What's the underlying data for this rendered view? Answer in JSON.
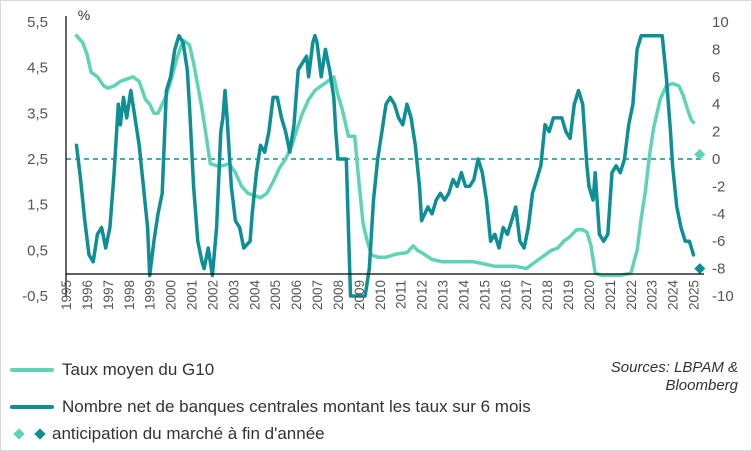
{
  "chart_data": {
    "type": "line",
    "unit_label": "%",
    "y_left": {
      "range": [
        -0.5,
        5.5
      ],
      "ticks": [
        "5,5",
        "4,5",
        "3,5",
        "2,5",
        "1,5",
        "0,5",
        "-0,5"
      ],
      "tick_values": [
        5.5,
        4.5,
        3.5,
        2.5,
        1.5,
        0.5,
        -0.5
      ]
    },
    "y_right": {
      "range": [
        -10,
        10
      ],
      "ticks": [
        "10",
        "8",
        "6",
        "4",
        "2",
        "0",
        "-2",
        "-4",
        "-6",
        "-8",
        "-10"
      ],
      "tick_values": [
        10,
        8,
        6,
        4,
        2,
        0,
        -2,
        -4,
        -6,
        -8,
        -10
      ]
    },
    "x_range": [
      1995,
      2025.5
    ],
    "x_ticks": [
      "1995",
      "1996",
      "1997",
      "1998",
      "1999",
      "2000",
      "2001",
      "2002",
      "2003",
      "2004",
      "2005",
      "2006",
      "2007",
      "2008",
      "2009",
      "2010",
      "2011",
      "2012",
      "2013",
      "2014",
      "2015",
      "2016",
      "2017",
      "2018",
      "2019",
      "2020",
      "2021",
      "2022",
      "2023",
      "2024",
      "2025"
    ],
    "reference_line": {
      "axis": "right",
      "value": 0,
      "style": "dashed"
    },
    "series": [
      {
        "name": "Taux moyen du G10",
        "axis": "left",
        "color": "#5fd3b5",
        "points": [
          [
            1995.5,
            5.2
          ],
          [
            1995.8,
            5.05
          ],
          [
            1996.0,
            4.8
          ],
          [
            1996.2,
            4.4
          ],
          [
            1996.5,
            4.3
          ],
          [
            1996.8,
            4.1
          ],
          [
            1997.0,
            4.05
          ],
          [
            1997.3,
            4.1
          ],
          [
            1997.6,
            4.2
          ],
          [
            1997.9,
            4.25
          ],
          [
            1998.2,
            4.3
          ],
          [
            1998.5,
            4.2
          ],
          [
            1998.8,
            3.8
          ],
          [
            1999.0,
            3.7
          ],
          [
            1999.2,
            3.5
          ],
          [
            1999.4,
            3.5
          ],
          [
            1999.6,
            3.7
          ],
          [
            1999.8,
            3.9
          ],
          [
            2000.0,
            4.2
          ],
          [
            2000.3,
            4.7
          ],
          [
            2000.6,
            5.1
          ],
          [
            2000.9,
            5.0
          ],
          [
            2001.1,
            4.6
          ],
          [
            2001.3,
            4.1
          ],
          [
            2001.5,
            3.6
          ],
          [
            2001.7,
            3.0
          ],
          [
            2001.9,
            2.4
          ],
          [
            2002.2,
            2.35
          ],
          [
            2002.5,
            2.35
          ],
          [
            2002.8,
            2.4
          ],
          [
            2003.1,
            2.2
          ],
          [
            2003.4,
            1.9
          ],
          [
            2003.7,
            1.75
          ],
          [
            2004.0,
            1.7
          ],
          [
            2004.3,
            1.65
          ],
          [
            2004.6,
            1.75
          ],
          [
            2004.9,
            2.0
          ],
          [
            2005.2,
            2.3
          ],
          [
            2005.5,
            2.5
          ],
          [
            2005.8,
            2.8
          ],
          [
            2006.0,
            3.1
          ],
          [
            2006.3,
            3.5
          ],
          [
            2006.6,
            3.8
          ],
          [
            2006.9,
            4.0
          ],
          [
            2007.2,
            4.1
          ],
          [
            2007.5,
            4.2
          ],
          [
            2007.8,
            4.3
          ],
          [
            2008.0,
            3.9
          ],
          [
            2008.2,
            3.6
          ],
          [
            2008.5,
            3.0
          ],
          [
            2008.8,
            3.0
          ],
          [
            2009.0,
            2.0
          ],
          [
            2009.2,
            1.1
          ],
          [
            2009.4,
            0.7
          ],
          [
            2009.6,
            0.4
          ],
          [
            2009.9,
            0.35
          ],
          [
            2010.3,
            0.35
          ],
          [
            2010.8,
            0.42
          ],
          [
            2011.3,
            0.45
          ],
          [
            2011.6,
            0.6
          ],
          [
            2011.8,
            0.5
          ],
          [
            2012.0,
            0.45
          ],
          [
            2012.5,
            0.3
          ],
          [
            2013.0,
            0.25
          ],
          [
            2013.5,
            0.25
          ],
          [
            2014.0,
            0.25
          ],
          [
            2014.5,
            0.25
          ],
          [
            2015.0,
            0.2
          ],
          [
            2015.5,
            0.15
          ],
          [
            2016.0,
            0.15
          ],
          [
            2016.5,
            0.15
          ],
          [
            2017.0,
            0.1
          ],
          [
            2017.3,
            0.2
          ],
          [
            2017.6,
            0.3
          ],
          [
            2017.9,
            0.4
          ],
          [
            2018.2,
            0.5
          ],
          [
            2018.5,
            0.55
          ],
          [
            2018.8,
            0.7
          ],
          [
            2019.1,
            0.8
          ],
          [
            2019.4,
            0.95
          ],
          [
            2019.7,
            0.95
          ],
          [
            2019.9,
            0.9
          ],
          [
            2020.1,
            0.6
          ],
          [
            2020.3,
            0.0
          ],
          [
            2020.6,
            -0.05
          ],
          [
            2021.0,
            -0.05
          ],
          [
            2021.5,
            -0.05
          ],
          [
            2022.0,
            0.0
          ],
          [
            2022.3,
            0.5
          ],
          [
            2022.5,
            1.2
          ],
          [
            2022.7,
            1.8
          ],
          [
            2022.9,
            2.6
          ],
          [
            2023.1,
            3.2
          ],
          [
            2023.4,
            3.8
          ],
          [
            2023.7,
            4.1
          ],
          [
            2024.0,
            4.15
          ],
          [
            2024.3,
            4.1
          ],
          [
            2024.5,
            3.9
          ],
          [
            2024.7,
            3.6
          ],
          [
            2024.9,
            3.35
          ],
          [
            2025.0,
            3.3
          ]
        ]
      },
      {
        "name": "Nombre net de banques centrales montant les taux sur 6 mois",
        "axis": "right",
        "color": "#0e8f95",
        "points": [
          [
            1995.5,
            1.0
          ],
          [
            1995.7,
            -1.5
          ],
          [
            1995.9,
            -4.5
          ],
          [
            1996.1,
            -7.0
          ],
          [
            1996.3,
            -7.5
          ],
          [
            1996.5,
            -5.5
          ],
          [
            1996.7,
            -5.0
          ],
          [
            1996.9,
            -6.5
          ],
          [
            1997.1,
            -5.0
          ],
          [
            1997.3,
            -1.0
          ],
          [
            1997.5,
            4.0
          ],
          [
            1997.6,
            2.5
          ],
          [
            1997.75,
            4.5
          ],
          [
            1997.9,
            3.0
          ],
          [
            1998.1,
            5.0
          ],
          [
            1998.3,
            3.0
          ],
          [
            1998.5,
            1.0
          ],
          [
            1998.7,
            -2.0
          ],
          [
            1998.9,
            -5.0
          ],
          [
            1999.0,
            -8.5
          ],
          [
            1999.2,
            -6.0
          ],
          [
            1999.4,
            -4.0
          ],
          [
            1999.6,
            -2.5
          ],
          [
            1999.8,
            5.0
          ],
          [
            2000.0,
            6.0
          ],
          [
            2000.2,
            8.0
          ],
          [
            2000.4,
            9.0
          ],
          [
            2000.6,
            8.5
          ],
          [
            2000.8,
            6.5
          ],
          [
            2000.9,
            4.0
          ],
          [
            2001.1,
            -2.0
          ],
          [
            2001.3,
            -6.0
          ],
          [
            2001.5,
            -7.5
          ],
          [
            2001.6,
            -8.0
          ],
          [
            2001.8,
            -6.5
          ],
          [
            2002.0,
            -8.5
          ],
          [
            2002.2,
            -5.0
          ],
          [
            2002.4,
            2.0
          ],
          [
            2002.5,
            3.0
          ],
          [
            2002.6,
            5.0
          ],
          [
            2002.7,
            3.0
          ],
          [
            2002.9,
            -2.0
          ],
          [
            2003.1,
            -4.5
          ],
          [
            2003.3,
            -5.0
          ],
          [
            2003.5,
            -6.5
          ],
          [
            2003.8,
            -6.0
          ],
          [
            2003.9,
            -4.0
          ],
          [
            2004.1,
            -1.0
          ],
          [
            2004.3,
            1.0
          ],
          [
            2004.5,
            0.5
          ],
          [
            2004.7,
            2.0
          ],
          [
            2004.9,
            4.5
          ],
          [
            2005.1,
            4.5
          ],
          [
            2005.3,
            3.0
          ],
          [
            2005.5,
            2.0
          ],
          [
            2005.7,
            0.5
          ],
          [
            2005.9,
            2.5
          ],
          [
            2006.1,
            6.5
          ],
          [
            2006.3,
            7.0
          ],
          [
            2006.5,
            7.5
          ],
          [
            2006.6,
            6.0
          ],
          [
            2006.8,
            8.5
          ],
          [
            2006.9,
            9.0
          ],
          [
            2007.0,
            8.5
          ],
          [
            2007.2,
            6.0
          ],
          [
            2007.4,
            8.0
          ],
          [
            2007.6,
            6.5
          ],
          [
            2007.8,
            4.5
          ],
          [
            2007.9,
            2.0
          ],
          [
            2008.0,
            0.0
          ],
          [
            2008.2,
            0.0
          ],
          [
            2008.4,
            0.0
          ],
          [
            2008.6,
            -10.0
          ],
          [
            2008.8,
            -10.0
          ],
          [
            2009.0,
            -10.0
          ],
          [
            2009.3,
            -10.0
          ],
          [
            2009.5,
            -8.0
          ],
          [
            2009.7,
            -3.0
          ],
          [
            2009.9,
            0.0
          ],
          [
            2010.1,
            2.0
          ],
          [
            2010.3,
            4.0
          ],
          [
            2010.5,
            4.5
          ],
          [
            2010.7,
            4.0
          ],
          [
            2010.9,
            3.0
          ],
          [
            2011.1,
            2.5
          ],
          [
            2011.3,
            4.0
          ],
          [
            2011.5,
            3.0
          ],
          [
            2011.7,
            1.0
          ],
          [
            2011.9,
            -2.0
          ],
          [
            2012.0,
            -4.5
          ],
          [
            2012.3,
            -3.5
          ],
          [
            2012.5,
            -4.0
          ],
          [
            2012.7,
            -3.0
          ],
          [
            2012.9,
            -2.5
          ],
          [
            2013.1,
            -3.0
          ],
          [
            2013.3,
            -2.5
          ],
          [
            2013.5,
            -1.5
          ],
          [
            2013.7,
            -2.0
          ],
          [
            2013.9,
            -1.0
          ],
          [
            2014.1,
            -2.0
          ],
          [
            2014.3,
            -2.0
          ],
          [
            2014.5,
            -1.5
          ],
          [
            2014.7,
            0.0
          ],
          [
            2014.9,
            -1.0
          ],
          [
            2015.1,
            -3.0
          ],
          [
            2015.3,
            -6.0
          ],
          [
            2015.5,
            -5.5
          ],
          [
            2015.7,
            -6.5
          ],
          [
            2015.9,
            -5.0
          ],
          [
            2016.1,
            -5.5
          ],
          [
            2016.3,
            -4.5
          ],
          [
            2016.5,
            -3.5
          ],
          [
            2016.7,
            -6.0
          ],
          [
            2016.9,
            -6.5
          ],
          [
            2017.1,
            -5.0
          ],
          [
            2017.3,
            -2.5
          ],
          [
            2017.5,
            -1.5
          ],
          [
            2017.7,
            -0.5
          ],
          [
            2017.9,
            2.5
          ],
          [
            2018.1,
            2.0
          ],
          [
            2018.3,
            3.0
          ],
          [
            2018.5,
            3.0
          ],
          [
            2018.7,
            3.0
          ],
          [
            2018.9,
            2.0
          ],
          [
            2019.1,
            1.5
          ],
          [
            2019.3,
            4.0
          ],
          [
            2019.5,
            5.0
          ],
          [
            2019.7,
            4.0
          ],
          [
            2019.9,
            -0.5
          ],
          [
            2020.0,
            -2.0
          ],
          [
            2020.2,
            -3.0
          ],
          [
            2020.3,
            -1.0
          ],
          [
            2020.5,
            -5.5
          ],
          [
            2020.7,
            -6.0
          ],
          [
            2020.9,
            -5.5
          ],
          [
            2021.1,
            -1.0
          ],
          [
            2021.3,
            -0.5
          ],
          [
            2021.5,
            -1.0
          ],
          [
            2021.7,
            0.0
          ],
          [
            2021.9,
            2.5
          ],
          [
            2022.1,
            4.0
          ],
          [
            2022.3,
            8.0
          ],
          [
            2022.5,
            9.0
          ],
          [
            2022.7,
            9.0
          ],
          [
            2023.0,
            9.0
          ],
          [
            2023.3,
            9.0
          ],
          [
            2023.5,
            9.0
          ],
          [
            2023.7,
            6.0
          ],
          [
            2023.9,
            2.0
          ],
          [
            2024.0,
            -0.5
          ],
          [
            2024.2,
            -3.5
          ],
          [
            2024.4,
            -5.0
          ],
          [
            2024.6,
            -6.0
          ],
          [
            2024.8,
            -6.0
          ],
          [
            2025.0,
            -7.0
          ]
        ]
      }
    ],
    "anticipation_points": [
      {
        "series": "Taux moyen du G10",
        "axis": "left",
        "x": 2025.3,
        "y": 2.6,
        "color": "#5fd3b5"
      },
      {
        "series": "Nombre net de banques centrales montant les taux sur 6 mois",
        "axis": "right",
        "x": 2025.3,
        "y": -8.0,
        "color": "#0e8f95"
      }
    ]
  },
  "legend": {
    "series1_label": "Taux moyen du G10",
    "series2_label": "Nombre net de banques centrales montant les taux sur 6 mois",
    "anticipation_label": "anticipation du marché à fin d'année"
  },
  "source": {
    "line1": "Sources: LBPAM &",
    "line2": "Bloomberg"
  }
}
